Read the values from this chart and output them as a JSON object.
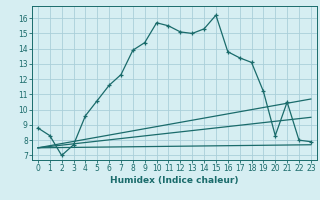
{
  "xlabel": "Humidex (Indice chaleur)",
  "bg_color": "#d6eef2",
  "grid_color": "#aacfda",
  "line_color": "#1a6b6b",
  "xlim": [
    -0.5,
    23.5
  ],
  "ylim": [
    6.7,
    16.8
  ],
  "xticks": [
    0,
    1,
    2,
    3,
    4,
    5,
    6,
    7,
    8,
    9,
    10,
    11,
    12,
    13,
    14,
    15,
    16,
    17,
    18,
    19,
    20,
    21,
    22,
    23
  ],
  "yticks": [
    7,
    8,
    9,
    10,
    11,
    12,
    13,
    14,
    15,
    16
  ],
  "curve1_x": [
    0,
    1,
    2,
    3,
    4,
    5,
    6,
    7,
    8,
    9,
    10,
    11,
    12,
    13,
    14,
    15,
    16,
    17,
    18,
    19,
    20,
    21,
    22,
    23
  ],
  "curve1_y": [
    8.8,
    8.3,
    7.0,
    7.7,
    9.6,
    10.6,
    11.6,
    12.3,
    13.9,
    14.4,
    15.7,
    15.5,
    15.1,
    15.0,
    15.3,
    16.2,
    13.8,
    13.4,
    13.1,
    11.2,
    8.3,
    10.5,
    8.0,
    7.9
  ],
  "curve2_x": [
    0,
    23
  ],
  "curve2_y": [
    7.5,
    7.7
  ],
  "curve3_x": [
    0,
    23
  ],
  "curve3_y": [
    7.5,
    9.5
  ],
  "curve4_x": [
    0,
    23
  ],
  "curve4_y": [
    7.5,
    10.7
  ]
}
